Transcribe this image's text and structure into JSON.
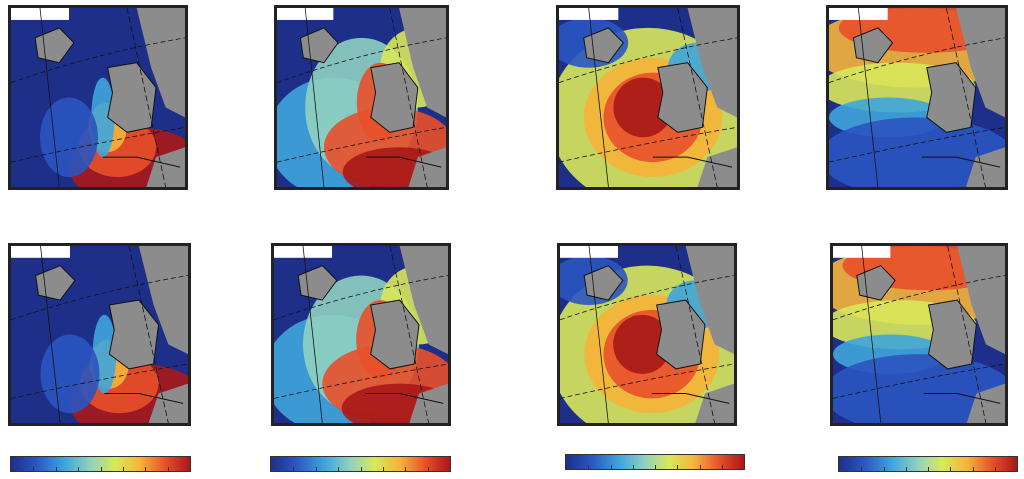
{
  "panels": [
    {
      "id": "r1c1",
      "pattern": "shelf-hot"
    },
    {
      "id": "r1c2",
      "pattern": "broad-shelf"
    },
    {
      "id": "r1c3",
      "pattern": "central-max"
    },
    {
      "id": "r1c4",
      "pattern": "north-hot"
    },
    {
      "id": "r2c1",
      "pattern": "shelf-hot"
    },
    {
      "id": "r2c2",
      "pattern": "broad-shelf"
    },
    {
      "id": "r2c3",
      "pattern": "central-max"
    },
    {
      "id": "r2c4",
      "pattern": "north-hot"
    }
  ],
  "colorbars": [
    {
      "id": "cb1",
      "ticks": 8
    },
    {
      "id": "cb2",
      "ticks": 8
    },
    {
      "id": "cb3",
      "ticks": 8
    },
    {
      "id": "cb4",
      "ticks": 8
    }
  ],
  "colors": {
    "land": "#8c8c8c",
    "no_data": "#ffffff",
    "frame": "#222222",
    "scale": [
      "#1e2f8a",
      "#2a55c0",
      "#3fa5dc",
      "#8fd0c0",
      "#d8e85a",
      "#f5b43a",
      "#e8502a",
      "#a81818"
    ]
  }
}
